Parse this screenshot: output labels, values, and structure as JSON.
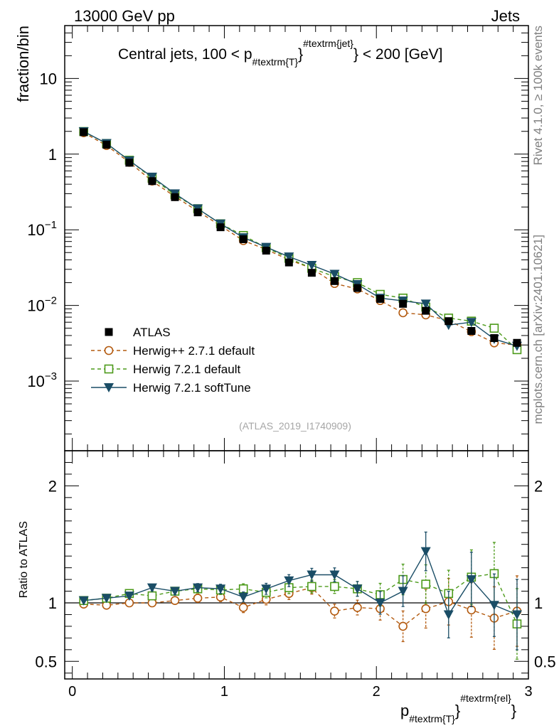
{
  "header": {
    "left": "13000 GeV pp",
    "right": "Jets"
  },
  "side_labels": {
    "rivet": "Rivet 4.1.0, ≥ 100k events",
    "mcplots": "mcplots.cern.ch [arXiv:2401.10621]"
  },
  "chart_data": {
    "type": "line",
    "title_parts": {
      "pre": "Central jets, 100 < p",
      "sub": "#textrm{T}",
      "sup": "#textrm{jet}",
      "post": "} < 200 [GeV]"
    },
    "ylabel": "fraction/bin",
    "ratio_ylabel": "Ratio to ATLAS",
    "xlabel_parts": {
      "main": "p",
      "sub": "#textrm{T}",
      "mid": "}",
      "sup": "#textrm{rel}",
      "post": "}"
    },
    "analysis_id": "(ATLAS_2019_I1740909)",
    "xlim": [
      -0.05,
      3.0
    ],
    "ylim": [
      0.00012,
      50
    ],
    "yscale": "log",
    "ratio_ylim": [
      0.35,
      2.3
    ],
    "xticks": [
      "0",
      "1",
      "2",
      "3"
    ],
    "yticks": [
      {
        "base": "10",
        "exp": "",
        "value": 10
      },
      {
        "base": "1",
        "exp": "",
        "value": 1
      },
      {
        "base": "10",
        "exp": "−1",
        "value": 0.1
      },
      {
        "base": "10",
        "exp": "−2",
        "value": 0.01
      },
      {
        "base": "10",
        "exp": "−3",
        "value": 0.001
      }
    ],
    "ratio_yticks": [
      "0.5",
      "1",
      "2"
    ],
    "x": [
      0.075,
      0.225,
      0.375,
      0.525,
      0.675,
      0.825,
      0.975,
      1.125,
      1.275,
      1.425,
      1.575,
      1.725,
      1.875,
      2.025,
      2.175,
      2.325,
      2.475,
      2.625,
      2.775,
      2.925
    ],
    "data": {
      "name": "ATLAS",
      "values": [
        1.95,
        1.33,
        0.77,
        0.44,
        0.27,
        0.17,
        0.108,
        0.075,
        0.053,
        0.037,
        0.027,
        0.021,
        0.017,
        0.0122,
        0.0105,
        0.0085,
        0.0062,
        0.0046,
        0.0037,
        0.0032
      ]
    },
    "series": [
      {
        "name": "Herwig++ 2.7.1 default",
        "color": "#b35a0f",
        "marker": "circle",
        "dash": true,
        "values": [
          1.92,
          1.3,
          0.78,
          0.44,
          0.275,
          0.176,
          0.113,
          0.072,
          0.055,
          0.04,
          0.031,
          0.0195,
          0.0165,
          0.0116,
          0.008,
          0.0075,
          0.0063,
          0.0045,
          0.0032,
          0.003
        ],
        "ratio": [
          0.99,
          0.98,
          1.0,
          1.0,
          1.02,
          1.04,
          1.05,
          0.96,
          1.03,
          1.08,
          1.13,
          0.93,
          0.96,
          0.95,
          0.8,
          0.95,
          1.01,
          0.94,
          0.87,
          0.93
        ]
      },
      {
        "name": "Herwig 7.2.1 default",
        "color": "#4c9a1a",
        "marker": "square",
        "dash": true,
        "values": [
          1.99,
          1.38,
          0.83,
          0.48,
          0.29,
          0.19,
          0.12,
          0.084,
          0.058,
          0.042,
          0.031,
          0.024,
          0.02,
          0.014,
          0.0125,
          0.0095,
          0.0068,
          0.0062,
          0.005,
          0.0026
        ],
        "ratio": [
          1.02,
          1.04,
          1.08,
          1.06,
          1.1,
          1.12,
          1.11,
          1.12,
          1.09,
          1.13,
          1.14,
          1.14,
          1.12,
          1.07,
          1.2,
          1.16,
          1.08,
          1.22,
          1.25,
          0.82
        ]
      },
      {
        "name": "Herwig 7.2.1 softTune",
        "color": "#1a4d66",
        "marker": "triangle",
        "dash": false,
        "values": [
          1.99,
          1.39,
          0.82,
          0.5,
          0.3,
          0.19,
          0.12,
          0.079,
          0.059,
          0.044,
          0.034,
          0.026,
          0.019,
          0.0125,
          0.0115,
          0.0105,
          0.0055,
          0.006,
          0.0036,
          0.0029
        ],
        "ratio": [
          1.02,
          1.04,
          1.06,
          1.13,
          1.1,
          1.13,
          1.12,
          1.05,
          1.12,
          1.19,
          1.24,
          1.24,
          1.12,
          1.0,
          1.1,
          1.44,
          0.9,
          1.2,
          0.98,
          0.9
        ]
      }
    ]
  }
}
